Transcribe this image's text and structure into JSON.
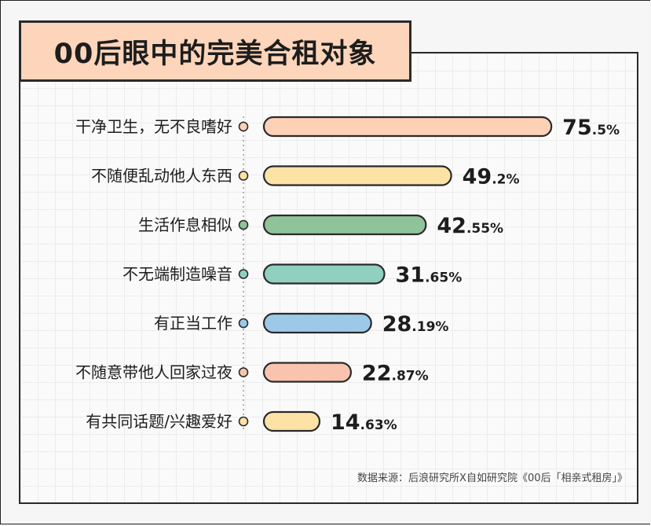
{
  "title": "00后眼中的完美合租对象",
  "source": "数据来源：后浪研究所X自如研究院《00后「相亲式租房」》",
  "chart_data": {
    "type": "bar",
    "orientation": "horizontal",
    "title": "00后眼中的完美合租对象",
    "categories": [
      "干净卫生，无不良嗜好",
      "不随便乱动他人东西",
      "生活作息相似",
      "不无端制造噪音",
      "有正当工作",
      "不随意带他人回家过夜",
      "有共同话题/兴趣爱好"
    ],
    "values": [
      75.5,
      49.2,
      42.55,
      31.65,
      28.19,
      22.87,
      14.63
    ],
    "value_labels": [
      {
        "int": "75",
        "dec": ".5%"
      },
      {
        "int": "49",
        "dec": ".2%"
      },
      {
        "int": "42",
        "dec": ".55%"
      },
      {
        "int": "31",
        "dec": ".65%"
      },
      {
        "int": "28",
        "dec": ".19%"
      },
      {
        "int": "22",
        "dec": ".87%"
      },
      {
        "int": "14",
        "dec": ".63%"
      }
    ],
    "colors": [
      "#fcd1b6",
      "#fde2a6",
      "#8fc49a",
      "#8fd0c0",
      "#9cc9e8",
      "#f9c3ad",
      "#fde2a6"
    ],
    "dot_colors": [
      "#fcd1b6",
      "#fde2a6",
      "#8fc49a",
      "#8fd0c0",
      "#9cc9e8",
      "#f9c3ad",
      "#fde2a6"
    ],
    "xlim": [
      0,
      100
    ],
    "grid": true,
    "legend": "none"
  }
}
